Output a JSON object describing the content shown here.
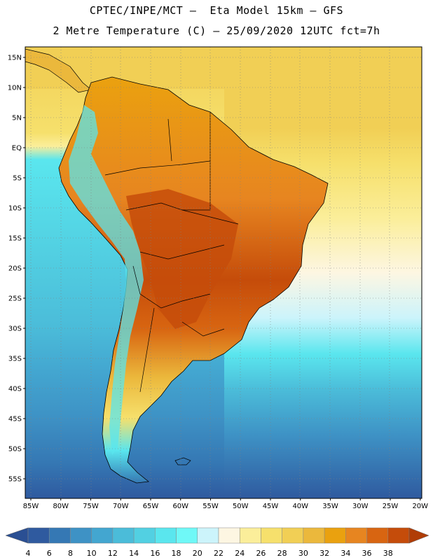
{
  "header": {
    "line1": "CPTEC/INPE/MCT –  Eta Model 15km – GFS",
    "line2": "2 Metre Temperature (C) – 25/09/2020 12UTC fct=7h"
  },
  "map": {
    "lat_labels": [
      "15N",
      "10N",
      "5N",
      "EQ",
      "5S",
      "10S",
      "15S",
      "20S",
      "25S",
      "30S",
      "35S",
      "40S",
      "45S",
      "50S",
      "55S"
    ],
    "lon_labels": [
      "85W",
      "80W",
      "75W",
      "70W",
      "65W",
      "60W",
      "55W",
      "50W",
      "45W",
      "40W",
      "35W",
      "30W",
      "25W",
      "20W"
    ]
  },
  "colorbar": {
    "labels": [
      "4",
      "6",
      "8",
      "10",
      "12",
      "14",
      "16",
      "18",
      "20",
      "22",
      "24",
      "26",
      "28",
      "30",
      "32",
      "34",
      "36",
      "38"
    ],
    "colors": [
      "#2f5a9f",
      "#3578b4",
      "#3e92c5",
      "#43a6d0",
      "#4bbcd9",
      "#52d0e2",
      "#5ae6ee",
      "#6ff8f7",
      "#ccf4fb",
      "#fdf6e2",
      "#fbee9a",
      "#f6e06c",
      "#f1cf55",
      "#ebb83c",
      "#eaa10f",
      "#e78520",
      "#d86511",
      "#c54c0a"
    ],
    "under_color": "#2a4f93",
    "over_color": "#b03d06"
  }
}
